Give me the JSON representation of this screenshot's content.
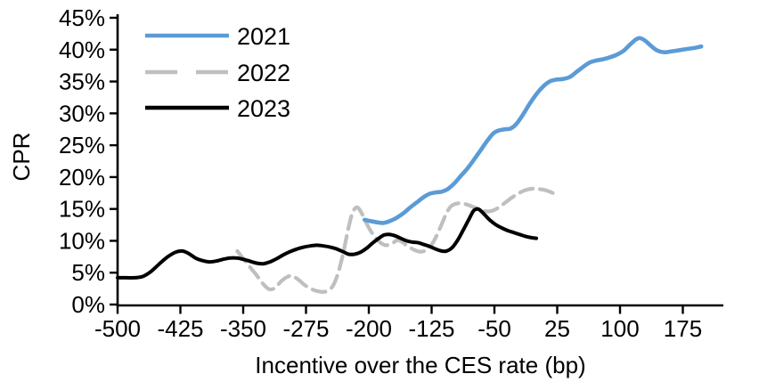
{
  "chart_data": {
    "type": "line",
    "title": "",
    "xlabel": "Incentive over the CES rate (bp)",
    "ylabel": "CPR",
    "grid": false,
    "legend_position": "top-left-inside",
    "x_axis": {
      "min": -500,
      "max": 222,
      "tick_values": [
        -500,
        -425,
        -350,
        -275,
        -200,
        -125,
        -50,
        25,
        100,
        175
      ],
      "tick_labels": [
        "-500",
        "-425",
        "-350",
        "-275",
        "-200",
        "-125",
        "-50",
        "25",
        "100",
        "175"
      ]
    },
    "y_axis": {
      "min": 0,
      "max": 45,
      "tick_values": [
        0,
        5,
        10,
        15,
        20,
        25,
        30,
        35,
        40,
        45
      ],
      "tick_labels": [
        "0%",
        "5%",
        "10%",
        "15%",
        "20%",
        "25%",
        "30%",
        "35%",
        "40%",
        "45%"
      ]
    },
    "series": [
      {
        "name": "2021",
        "color": "#5B9BD5",
        "style": "solid",
        "points": [
          [
            -205,
            13.3
          ],
          [
            -198,
            13.1
          ],
          [
            -190,
            12.9
          ],
          [
            -183,
            12.8
          ],
          [
            -175,
            13.1
          ],
          [
            -167,
            13.6
          ],
          [
            -158,
            14.4
          ],
          [
            -150,
            15.3
          ],
          [
            -142,
            16.1
          ],
          [
            -134,
            16.9
          ],
          [
            -127,
            17.4
          ],
          [
            -120,
            17.6
          ],
          [
            -113,
            17.7
          ],
          [
            -106,
            18.1
          ],
          [
            -98,
            19.0
          ],
          [
            -90,
            20.2
          ],
          [
            -82,
            21.4
          ],
          [
            -74,
            22.8
          ],
          [
            -66,
            24.3
          ],
          [
            -58,
            25.8
          ],
          [
            -51,
            26.9
          ],
          [
            -45,
            27.3
          ],
          [
            -38,
            27.5
          ],
          [
            -31,
            27.6
          ],
          [
            -24,
            28.3
          ],
          [
            -16,
            29.8
          ],
          [
            -8,
            31.5
          ],
          [
            0,
            33.0
          ],
          [
            8,
            34.2
          ],
          [
            16,
            35.0
          ],
          [
            24,
            35.3
          ],
          [
            32,
            35.4
          ],
          [
            40,
            35.7
          ],
          [
            48,
            36.5
          ],
          [
            56,
            37.3
          ],
          [
            64,
            38.0
          ],
          [
            72,
            38.3
          ],
          [
            80,
            38.5
          ],
          [
            88,
            38.8
          ],
          [
            96,
            39.2
          ],
          [
            104,
            39.8
          ],
          [
            112,
            40.8
          ],
          [
            119,
            41.6
          ],
          [
            124,
            41.8
          ],
          [
            130,
            41.4
          ],
          [
            137,
            40.6
          ],
          [
            144,
            39.9
          ],
          [
            152,
            39.6
          ],
          [
            160,
            39.7
          ],
          [
            170,
            39.9
          ],
          [
            180,
            40.1
          ],
          [
            190,
            40.3
          ],
          [
            197,
            40.5
          ]
        ]
      },
      {
        "name": "2022",
        "color": "#BFBFBF",
        "style": "dashed",
        "points": [
          [
            -357,
            8.4
          ],
          [
            -350,
            7.2
          ],
          [
            -342,
            5.9
          ],
          [
            -334,
            4.6
          ],
          [
            -326,
            3.2
          ],
          [
            -319,
            2.4
          ],
          [
            -312,
            2.6
          ],
          [
            -305,
            3.6
          ],
          [
            -298,
            4.3
          ],
          [
            -292,
            4.5
          ],
          [
            -285,
            4.0
          ],
          [
            -278,
            3.2
          ],
          [
            -271,
            2.6
          ],
          [
            -264,
            2.2
          ],
          [
            -257,
            2.0
          ],
          [
            -250,
            2.1
          ],
          [
            -243,
            2.9
          ],
          [
            -237,
            4.8
          ],
          [
            -231,
            7.8
          ],
          [
            -226,
            11.0
          ],
          [
            -221,
            13.8
          ],
          [
            -217,
            15.0
          ],
          [
            -213,
            15.2
          ],
          [
            -208,
            14.2
          ],
          [
            -203,
            12.8
          ],
          [
            -197,
            11.4
          ],
          [
            -191,
            10.4
          ],
          [
            -185,
            9.6
          ],
          [
            -179,
            9.3
          ],
          [
            -172,
            9.6
          ],
          [
            -166,
            10.1
          ],
          [
            -160,
            9.8
          ],
          [
            -153,
            9.1
          ],
          [
            -146,
            8.6
          ],
          [
            -139,
            8.3
          ],
          [
            -132,
            8.5
          ],
          [
            -125,
            9.4
          ],
          [
            -119,
            10.8
          ],
          [
            -113,
            12.6
          ],
          [
            -107,
            14.4
          ],
          [
            -102,
            15.4
          ],
          [
            -96,
            15.8
          ],
          [
            -89,
            15.9
          ],
          [
            -81,
            15.6
          ],
          [
            -73,
            15.2
          ],
          [
            -65,
            14.8
          ],
          [
            -58,
            14.6
          ],
          [
            -51,
            14.8
          ],
          [
            -44,
            15.3
          ],
          [
            -37,
            16.0
          ],
          [
            -30,
            16.7
          ],
          [
            -23,
            17.3
          ],
          [
            -16,
            17.8
          ],
          [
            -9,
            18.1
          ],
          [
            -2,
            18.2
          ],
          [
            5,
            18.1
          ],
          [
            12,
            17.9
          ],
          [
            20,
            17.5
          ]
        ]
      },
      {
        "name": "2023",
        "color": "#000000",
        "style": "solid",
        "points": [
          [
            -500,
            4.2
          ],
          [
            -490,
            4.2
          ],
          [
            -480,
            4.2
          ],
          [
            -470,
            4.4
          ],
          [
            -460,
            5.2
          ],
          [
            -450,
            6.4
          ],
          [
            -440,
            7.5
          ],
          [
            -431,
            8.2
          ],
          [
            -423,
            8.4
          ],
          [
            -415,
            8.0
          ],
          [
            -407,
            7.3
          ],
          [
            -399,
            6.9
          ],
          [
            -391,
            6.7
          ],
          [
            -383,
            6.8
          ],
          [
            -374,
            7.1
          ],
          [
            -366,
            7.3
          ],
          [
            -358,
            7.3
          ],
          [
            -350,
            7.1
          ],
          [
            -342,
            6.8
          ],
          [
            -334,
            6.5
          ],
          [
            -326,
            6.4
          ],
          [
            -318,
            6.7
          ],
          [
            -310,
            7.2
          ],
          [
            -302,
            7.8
          ],
          [
            -294,
            8.3
          ],
          [
            -286,
            8.7
          ],
          [
            -278,
            9.0
          ],
          [
            -270,
            9.2
          ],
          [
            -262,
            9.3
          ],
          [
            -254,
            9.2
          ],
          [
            -246,
            9.0
          ],
          [
            -238,
            8.7
          ],
          [
            -231,
            8.3
          ],
          [
            -224,
            7.9
          ],
          [
            -217,
            7.9
          ],
          [
            -210,
            8.2
          ],
          [
            -203,
            8.8
          ],
          [
            -196,
            9.6
          ],
          [
            -189,
            10.3
          ],
          [
            -182,
            10.9
          ],
          [
            -176,
            11.0
          ],
          [
            -169,
            10.8
          ],
          [
            -162,
            10.4
          ],
          [
            -155,
            10.0
          ],
          [
            -148,
            9.8
          ],
          [
            -141,
            9.7
          ],
          [
            -134,
            9.4
          ],
          [
            -127,
            9.1
          ],
          [
            -120,
            8.7
          ],
          [
            -113,
            8.4
          ],
          [
            -107,
            8.4
          ],
          [
            -100,
            9.0
          ],
          [
            -93,
            10.3
          ],
          [
            -86,
            12.0
          ],
          [
            -80,
            13.5
          ],
          [
            -75,
            14.7
          ],
          [
            -71,
            15.0
          ],
          [
            -67,
            14.8
          ],
          [
            -61,
            14.0
          ],
          [
            -55,
            13.2
          ],
          [
            -48,
            12.5
          ],
          [
            -41,
            12.0
          ],
          [
            -34,
            11.6
          ],
          [
            -27,
            11.3
          ],
          [
            -20,
            11.0
          ],
          [
            -13,
            10.7
          ],
          [
            -6,
            10.5
          ],
          [
            0,
            10.4
          ]
        ]
      }
    ]
  }
}
